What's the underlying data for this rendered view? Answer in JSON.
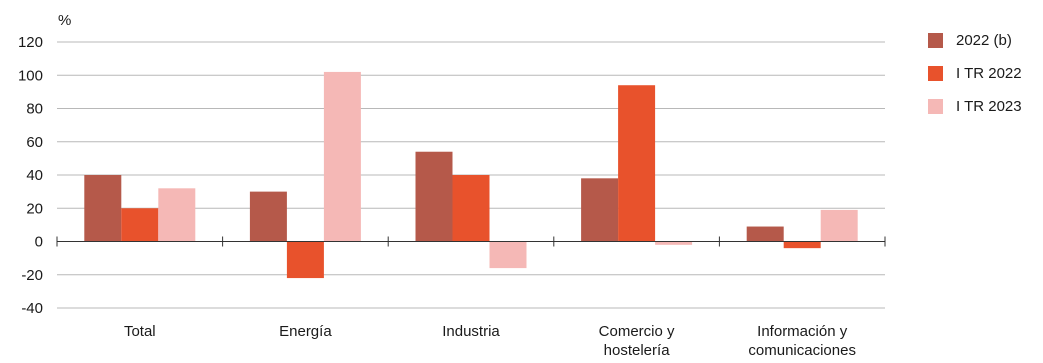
{
  "chart_data": {
    "type": "bar",
    "ylabel": "%",
    "ylim": [
      -40,
      120
    ],
    "yticks": [
      -40,
      -20,
      0,
      20,
      40,
      60,
      80,
      100,
      120
    ],
    "grid": true,
    "legend_position": "right",
    "categories": [
      [
        "Total"
      ],
      [
        "Energía"
      ],
      [
        "Industria"
      ],
      [
        "Comercio y",
        "hostelería"
      ],
      [
        "Información y",
        "comunicaciones"
      ]
    ],
    "series": [
      {
        "name": "2022 (b)",
        "color": "#b5594a",
        "values": [
          40,
          30,
          54,
          38,
          9
        ]
      },
      {
        "name": "I TR 2022",
        "color": "#e8522c",
        "values": [
          20,
          -22,
          40,
          94,
          -4
        ]
      },
      {
        "name": "I TR 2023",
        "color": "#f5b8b6",
        "values": [
          32,
          102,
          -16,
          -2,
          19
        ]
      }
    ]
  }
}
